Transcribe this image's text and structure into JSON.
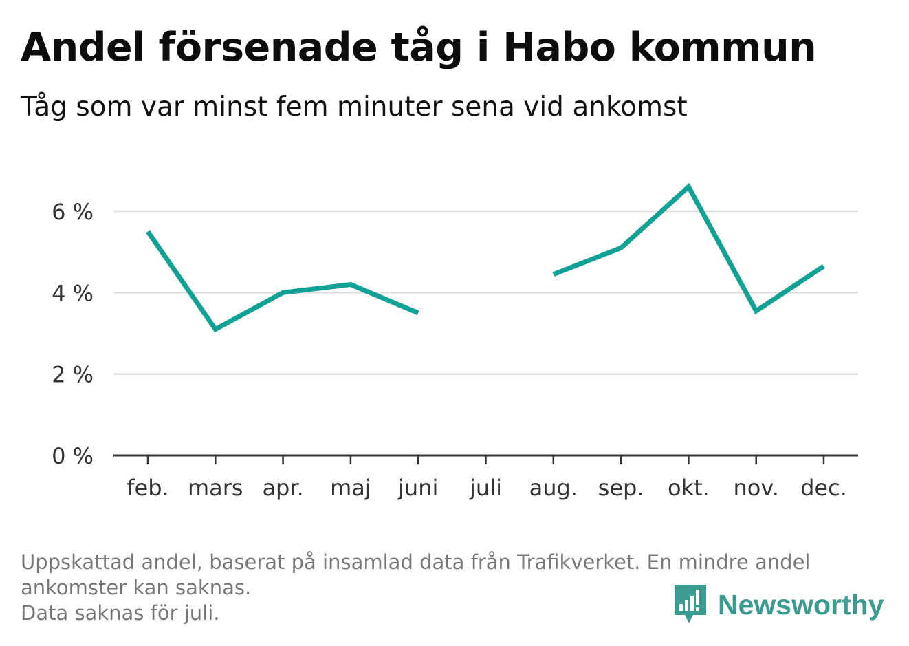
{
  "title": "Andel försenade tåg i Habo kommun",
  "subtitle": "Tåg som var minst fem minuter sena vid ankomst",
  "footnote": {
    "line1": "Uppskattad andel, baserat på insamlad data från Trafikverket. En mindre andel",
    "line2": "ankomster kan saknas.",
    "line3": "Data saknas för juli."
  },
  "brand": {
    "name": "Newsworthy",
    "icon": "bar-chart-speech-bubble-icon",
    "color": "#3b9b91"
  },
  "colors": {
    "line": "#11a295",
    "grid": "#dddddd",
    "axis": "#333333"
  },
  "chart_data": {
    "type": "line",
    "categories": [
      "feb.",
      "mars",
      "apr.",
      "maj",
      "juni",
      "juli",
      "aug.",
      "sep.",
      "okt.",
      "nov.",
      "dec."
    ],
    "series": [
      {
        "values": [
          5.5,
          3.1,
          4.0,
          4.2,
          3.5,
          null,
          4.45,
          5.1,
          6.6,
          3.55,
          4.65
        ]
      }
    ],
    "yticks": [
      0,
      2,
      4,
      6
    ],
    "ytick_labels": [
      "0 %",
      "2 %",
      "4 %",
      "6 %"
    ],
    "ylim": [
      0,
      7
    ],
    "grid": true,
    "xlabel": "",
    "ylabel": ""
  }
}
